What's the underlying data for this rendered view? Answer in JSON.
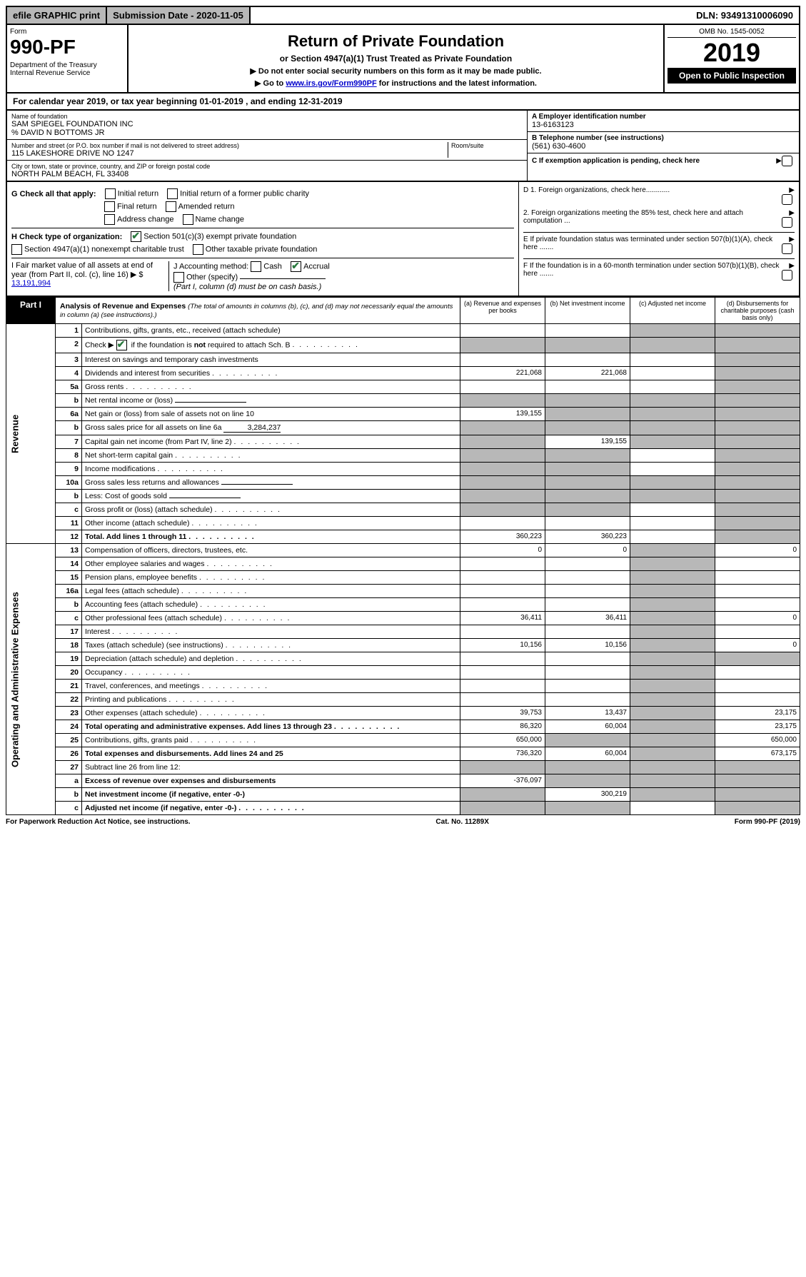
{
  "topbar": {
    "efile": "efile GRAPHIC print",
    "submission": "Submission Date - 2020-11-05",
    "dln": "DLN: 93491310006090"
  },
  "header": {
    "form_label": "Form",
    "form_number": "990-PF",
    "dept": "Department of the Treasury\nInternal Revenue Service",
    "title": "Return of Private Foundation",
    "subtitle": "or Section 4947(a)(1) Trust Treated as Private Foundation",
    "notice1": "▶ Do not enter social security numbers on this form as it may be made public.",
    "notice2_pre": "▶ Go to ",
    "notice2_link": "www.irs.gov/Form990PF",
    "notice2_post": " for instructions and the latest information.",
    "omb": "OMB No. 1545-0052",
    "year": "2019",
    "open": "Open to Public Inspection"
  },
  "cal_year": "For calendar year 2019, or tax year beginning 01-01-2019             , and ending 12-31-2019",
  "entity": {
    "name_label": "Name of foundation",
    "name": "SAM SPIEGEL FOUNDATION INC\n% DAVID N BOTTOMS JR",
    "addr_label": "Number and street (or P.O. box number if mail is not delivered to street address)",
    "addr": "115 LAKESHORE DRIVE NO 1247",
    "room_label": "Room/suite",
    "city_label": "City or town, state or province, country, and ZIP or foreign postal code",
    "city": "NORTH PALM BEACH, FL  33408",
    "ein_label": "A Employer identification number",
    "ein": "13-6163123",
    "tel_label": "B Telephone number (see instructions)",
    "tel": "(561) 630-4600",
    "c_label": "C If exemption application is pending, check here"
  },
  "checks": {
    "g_label": "G Check all that apply:",
    "g_items": [
      "Initial return",
      "Initial return of a former public charity",
      "Final return",
      "Amended return",
      "Address change",
      "Name change"
    ],
    "h_label": "H Check type of organization:",
    "h_501c3": "Section 501(c)(3) exempt private foundation",
    "h_4947": "Section 4947(a)(1) nonexempt charitable trust",
    "h_other": "Other taxable private foundation",
    "i_label": "I Fair market value of all assets at end of year (from Part II, col. (c), line 16) ▶ $",
    "i_value": "13,191,994",
    "j_label": "J Accounting method:",
    "j_cash": "Cash",
    "j_accrual": "Accrual",
    "j_other": "Other (specify)",
    "j_note": "(Part I, column (d) must be on cash basis.)"
  },
  "right_d": {
    "d1": "D 1. Foreign organizations, check here............",
    "d2": "2. Foreign organizations meeting the 85% test, check here and attach computation ...",
    "e": "E  If private foundation status was terminated under section 507(b)(1)(A), check here .......",
    "f": "F  If the foundation is in a 60-month termination under section 507(b)(1)(B), check here ......."
  },
  "part1": {
    "label": "Part I",
    "title": "Analysis of Revenue and Expenses",
    "title_sub": "(The total of amounts in columns (b), (c), and (d) may not necessarily equal the amounts in column (a) (see instructions).)",
    "col_a": "(a)   Revenue and expenses per books",
    "col_b": "(b)  Net investment income",
    "col_c": "(c)  Adjusted net income",
    "col_d": "(d)  Disbursements for charitable purposes (cash basis only)",
    "vert_rev": "Revenue",
    "vert_exp": "Operating and Administrative Expenses"
  },
  "rows": [
    {
      "n": "1",
      "d": "Contributions, gifts, grants, etc., received (attach schedule)",
      "a": "",
      "b": "",
      "c": "s",
      "dcol": "s"
    },
    {
      "n": "2",
      "d": "Check ▶ ☑ if the foundation is not required to attach Sch. B",
      "a": "s",
      "b": "s",
      "c": "s",
      "dcol": "s",
      "checked": true,
      "dots": true
    },
    {
      "n": "3",
      "d": "Interest on savings and temporary cash investments",
      "a": "",
      "b": "",
      "c": "",
      "dcol": "s"
    },
    {
      "n": "4",
      "d": "Dividends and interest from securities",
      "a": "221,068",
      "b": "221,068",
      "c": "",
      "dcol": "s",
      "dots": true
    },
    {
      "n": "5a",
      "d": "Gross rents",
      "a": "",
      "b": "",
      "c": "",
      "dcol": "s",
      "dots": true
    },
    {
      "n": "b",
      "d": "Net rental income or (loss)",
      "a": "s",
      "b": "s",
      "c": "s",
      "dcol": "s",
      "inline": true
    },
    {
      "n": "6a",
      "d": "Net gain or (loss) from sale of assets not on line 10",
      "a": "139,155",
      "b": "s",
      "c": "s",
      "dcol": "s"
    },
    {
      "n": "b",
      "d": "Gross sales price for all assets on line 6a",
      "a": "s",
      "b": "s",
      "c": "s",
      "dcol": "s",
      "inline_val": "3,284,237"
    },
    {
      "n": "7",
      "d": "Capital gain net income (from Part IV, line 2)",
      "a": "s",
      "b": "139,155",
      "c": "s",
      "dcol": "s",
      "dots": true
    },
    {
      "n": "8",
      "d": "Net short-term capital gain",
      "a": "s",
      "b": "s",
      "c": "",
      "dcol": "s",
      "dots": true
    },
    {
      "n": "9",
      "d": "Income modifications",
      "a": "s",
      "b": "s",
      "c": "",
      "dcol": "s",
      "dots": true
    },
    {
      "n": "10a",
      "d": "Gross sales less returns and allowances",
      "a": "s",
      "b": "s",
      "c": "s",
      "dcol": "s",
      "inline": true
    },
    {
      "n": "b",
      "d": "Less: Cost of goods sold",
      "a": "s",
      "b": "s",
      "c": "s",
      "dcol": "s",
      "inline": true,
      "dots": true
    },
    {
      "n": "c",
      "d": "Gross profit or (loss) (attach schedule)",
      "a": "s",
      "b": "s",
      "c": "",
      "dcol": "s",
      "dots": true
    },
    {
      "n": "11",
      "d": "Other income (attach schedule)",
      "a": "",
      "b": "",
      "c": "",
      "dcol": "s",
      "dots": true
    },
    {
      "n": "12",
      "d": "Total. Add lines 1 through 11",
      "a": "360,223",
      "b": "360,223",
      "c": "",
      "dcol": "s",
      "bold": true,
      "dots": true
    },
    {
      "n": "13",
      "d": "Compensation of officers, directors, trustees, etc.",
      "a": "0",
      "b": "0",
      "c": "s",
      "dcol": "0"
    },
    {
      "n": "14",
      "d": "Other employee salaries and wages",
      "a": "",
      "b": "",
      "c": "s",
      "dcol": "",
      "dots": true
    },
    {
      "n": "15",
      "d": "Pension plans, employee benefits",
      "a": "",
      "b": "",
      "c": "s",
      "dcol": "",
      "dots": true
    },
    {
      "n": "16a",
      "d": "Legal fees (attach schedule)",
      "a": "",
      "b": "",
      "c": "s",
      "dcol": "",
      "dots": true
    },
    {
      "n": "b",
      "d": "Accounting fees (attach schedule)",
      "a": "",
      "b": "",
      "c": "s",
      "dcol": "",
      "dots": true
    },
    {
      "n": "c",
      "d": "Other professional fees (attach schedule)",
      "a": "36,411",
      "b": "36,411",
      "c": "s",
      "dcol": "0",
      "dots": true
    },
    {
      "n": "17",
      "d": "Interest",
      "a": "",
      "b": "",
      "c": "s",
      "dcol": "",
      "dots": true
    },
    {
      "n": "18",
      "d": "Taxes (attach schedule) (see instructions)",
      "a": "10,156",
      "b": "10,156",
      "c": "s",
      "dcol": "0",
      "dots": true
    },
    {
      "n": "19",
      "d": "Depreciation (attach schedule) and depletion",
      "a": "",
      "b": "",
      "c": "s",
      "dcol": "s",
      "dots": true
    },
    {
      "n": "20",
      "d": "Occupancy",
      "a": "",
      "b": "",
      "c": "s",
      "dcol": "",
      "dots": true
    },
    {
      "n": "21",
      "d": "Travel, conferences, and meetings",
      "a": "",
      "b": "",
      "c": "s",
      "dcol": "",
      "dots": true
    },
    {
      "n": "22",
      "d": "Printing and publications",
      "a": "",
      "b": "",
      "c": "s",
      "dcol": "",
      "dots": true
    },
    {
      "n": "23",
      "d": "Other expenses (attach schedule)",
      "a": "39,753",
      "b": "13,437",
      "c": "s",
      "dcol": "23,175",
      "dots": true
    },
    {
      "n": "24",
      "d": "Total operating and administrative expenses. Add lines 13 through 23",
      "a": "86,320",
      "b": "60,004",
      "c": "s",
      "dcol": "23,175",
      "bold": true,
      "dots": true
    },
    {
      "n": "25",
      "d": "Contributions, gifts, grants paid",
      "a": "650,000",
      "b": "s",
      "c": "s",
      "dcol": "650,000",
      "dots": true
    },
    {
      "n": "26",
      "d": "Total expenses and disbursements. Add lines 24 and 25",
      "a": "736,320",
      "b": "60,004",
      "c": "s",
      "dcol": "673,175",
      "bold": true
    },
    {
      "n": "27",
      "d": "Subtract line 26 from line 12:",
      "a": "s",
      "b": "s",
      "c": "s",
      "dcol": "s"
    },
    {
      "n": "a",
      "d": "Excess of revenue over expenses and disbursements",
      "a": "-376,097",
      "b": "s",
      "c": "s",
      "dcol": "s",
      "bold": true
    },
    {
      "n": "b",
      "d": "Net investment income (if negative, enter -0-)",
      "a": "s",
      "b": "300,219",
      "c": "s",
      "dcol": "s",
      "bold": true
    },
    {
      "n": "c",
      "d": "Adjusted net income (if negative, enter -0-)",
      "a": "s",
      "b": "s",
      "c": "",
      "dcol": "s",
      "bold": true,
      "dots": true
    }
  ],
  "footer": {
    "left": "For Paperwork Reduction Act Notice, see instructions.",
    "mid": "Cat. No. 11289X",
    "right": "Form 990-PF (2019)"
  }
}
